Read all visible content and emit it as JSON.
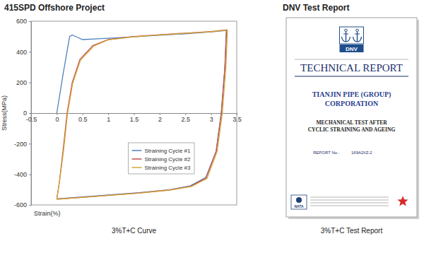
{
  "chart_data": {
    "type": "line",
    "title": "415SPD Offshore Project",
    "x_label": "Strain(%)",
    "y_label": "Stress(MPa)",
    "caption": "3%T+C Curve",
    "xlim": [
      -0.5,
      3.5
    ],
    "xticks": [
      -0.5,
      0,
      0.5,
      1,
      1.5,
      2,
      2.5,
      3,
      3.5
    ],
    "ylim": [
      -600,
      600
    ],
    "yticks": [
      -600,
      -400,
      -200,
      0,
      200,
      400,
      600
    ],
    "grid": false,
    "legend": "lower right",
    "series": [
      {
        "name": "Straining Cycle #1",
        "color": "#4f81bd",
        "x": [
          0,
          0.12,
          0.25,
          0.3,
          0.4,
          0.5,
          0.8,
          1.2,
          1.6,
          2.0,
          2.5,
          3.0,
          3.3,
          3.27,
          3.2,
          3.1,
          2.9,
          2.6,
          2.2,
          1.6,
          1.0,
          0.5,
          0.0
        ],
        "values": [
          0,
          250,
          500,
          510,
          495,
          480,
          485,
          492,
          500,
          508,
          518,
          530,
          540,
          300,
          0,
          -250,
          -420,
          -475,
          -500,
          -520,
          -535,
          -548,
          -560
        ]
      },
      {
        "name": "Straining Cycle #2",
        "color": "#c0504d",
        "x": [
          0,
          0.05,
          0.12,
          0.2,
          0.3,
          0.45,
          0.7,
          1.0,
          1.5,
          2.0,
          2.5,
          3.0,
          3.3,
          3.27,
          3.2,
          3.1,
          2.9,
          2.6,
          2.2,
          1.6,
          1.0,
          0.5,
          0.0
        ],
        "values": [
          -560,
          -450,
          -250,
          0,
          200,
          350,
          440,
          480,
          500,
          512,
          522,
          532,
          543,
          300,
          0,
          -250,
          -425,
          -478,
          -502,
          -522,
          -537,
          -550,
          -562
        ]
      },
      {
        "name": "Straining Cycle #3",
        "color": "#d4a73c",
        "x": [
          0,
          0.05,
          0.13,
          0.21,
          0.31,
          0.46,
          0.72,
          1.0,
          1.5,
          2.0,
          2.5,
          3.0,
          3.32,
          3.29,
          3.22,
          3.12,
          2.92,
          2.62,
          2.2,
          1.6,
          1.0,
          0.5,
          0.0
        ],
        "values": [
          -562,
          -455,
          -250,
          0,
          195,
          345,
          438,
          478,
          498,
          511,
          521,
          531,
          542,
          300,
          0,
          -250,
          -428,
          -480,
          -503,
          -523,
          -538,
          -551,
          -563
        ]
      }
    ]
  },
  "report": {
    "title": "DNV Test Report",
    "logo_text": "DNV",
    "heading": "TECHNICAL REPORT",
    "company": "TIANJIN PIPE (GROUP) CORPORATION",
    "subject": "MECHANICAL TEST AFTER CYCLIC STRAINING AND AGEING",
    "report_no_label": "REPORT No.:",
    "report_no": "169A2IIZ-2",
    "badge": "NATA",
    "caption": "3%T+C Test Report"
  }
}
